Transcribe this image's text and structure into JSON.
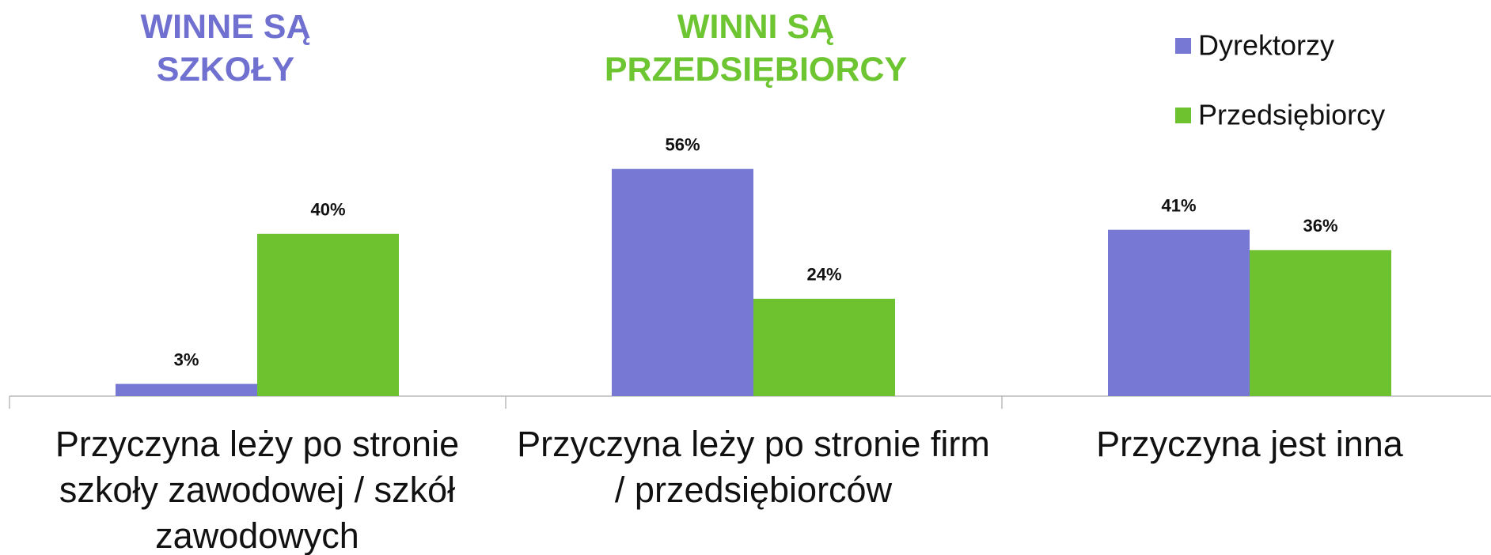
{
  "chart_data": {
    "type": "bar",
    "annotations": [
      {
        "text": [
          "WINNE SĄ",
          "SZKOŁY"
        ],
        "color": "#7070d0"
      },
      {
        "text": [
          "WINNI SĄ",
          "PRZEDSIĘBIORCY"
        ],
        "color": "#6cc531"
      }
    ],
    "categories": [
      "Przyczyna leży po stronie szkoły zawodowej / szkół zawodowych",
      "Przyczyna leży po stronie firm / przedsiębiorców",
      "Przyczyna jest inna"
    ],
    "series": [
      {
        "name": "Dyrektorzy",
        "color": "#7777d4",
        "values": [
          3,
          56,
          41
        ],
        "value_labels": [
          "3%",
          "56%",
          "41%"
        ]
      },
      {
        "name": "Przedsiębiorcy",
        "color": "#6ec22f",
        "values": [
          40,
          24,
          36
        ],
        "value_labels": [
          "40%",
          "24%",
          "36%"
        ]
      }
    ],
    "legend": "top-right"
  }
}
